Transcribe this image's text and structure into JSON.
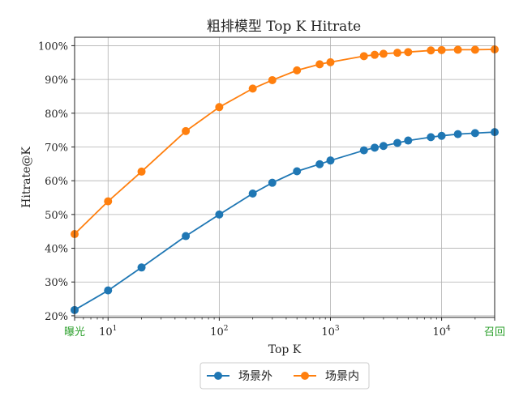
{
  "chart_data": {
    "type": "line",
    "title": "粗排模型 Top K Hitrate",
    "xlabel": "Top K",
    "ylabel": "Hitrate@K",
    "xscale": "log",
    "xlim": [
      5,
      30000
    ],
    "ylim": [
      0.195,
      1.025
    ],
    "grid": true,
    "legend_position": "bottom-center",
    "x_tick_labels": [
      {
        "x": 5,
        "label": "曝光",
        "color": "#2ca02c"
      },
      {
        "x": 10,
        "label": "10",
        "sup": "1"
      },
      {
        "x": 100,
        "label": "10",
        "sup": "2"
      },
      {
        "x": 1000,
        "label": "10",
        "sup": "3"
      },
      {
        "x": 10000,
        "label": "10",
        "sup": "4"
      },
      {
        "x": 30000,
        "label": "召回",
        "color": "#2ca02c"
      }
    ],
    "y_ticks": [
      0.2,
      0.3,
      0.4,
      0.5,
      0.6,
      0.7,
      0.8,
      0.9,
      1.0
    ],
    "y_tick_labels": [
      "20%",
      "30%",
      "40%",
      "50%",
      "60%",
      "70%",
      "80%",
      "90%",
      "100%"
    ],
    "series": [
      {
        "name": "场景外",
        "color": "#1f77b4",
        "x": [
          5,
          10,
          20,
          50,
          100,
          200,
          300,
          500,
          800,
          1000,
          2000,
          2500,
          3000,
          4000,
          5000,
          8000,
          10000,
          14000,
          20000,
          30000
        ],
        "y": [
          0.217,
          0.275,
          0.343,
          0.436,
          0.5,
          0.562,
          0.594,
          0.628,
          0.649,
          0.66,
          0.69,
          0.698,
          0.703,
          0.712,
          0.719,
          0.729,
          0.733,
          0.738,
          0.741,
          0.744
        ]
      },
      {
        "name": "场景内",
        "color": "#ff7f0e",
        "x": [
          5,
          10,
          20,
          50,
          100,
          200,
          300,
          500,
          800,
          1000,
          2000,
          2500,
          3000,
          4000,
          5000,
          8000,
          10000,
          14000,
          20000,
          30000
        ],
        "y": [
          0.442,
          0.539,
          0.627,
          0.747,
          0.818,
          0.873,
          0.898,
          0.927,
          0.945,
          0.951,
          0.969,
          0.973,
          0.976,
          0.979,
          0.981,
          0.986,
          0.987,
          0.988,
          0.988,
          0.989
        ]
      }
    ]
  }
}
